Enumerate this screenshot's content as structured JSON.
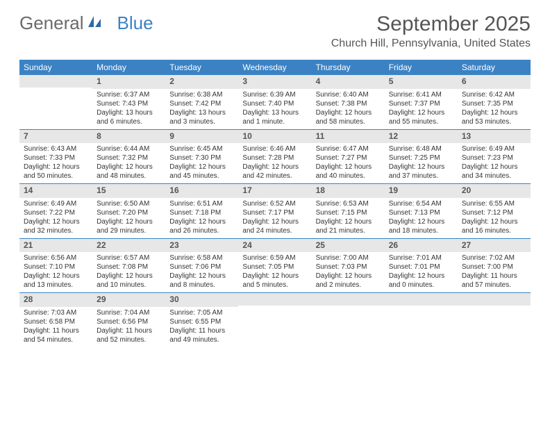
{
  "logo": {
    "text1": "General",
    "text2": "Blue"
  },
  "title": "September 2025",
  "location": "Church Hill, Pennsylvania, United States",
  "colors": {
    "header_bg": "#3b82c4",
    "daynum_bg": "#e7e7e7",
    "text": "#333333",
    "title_text": "#555555"
  },
  "dow": [
    "Sunday",
    "Monday",
    "Tuesday",
    "Wednesday",
    "Thursday",
    "Friday",
    "Saturday"
  ],
  "weeks": [
    [
      null,
      {
        "n": "1",
        "sr": "Sunrise: 6:37 AM",
        "ss": "Sunset: 7:43 PM",
        "dl": "Daylight: 13 hours and 6 minutes."
      },
      {
        "n": "2",
        "sr": "Sunrise: 6:38 AM",
        "ss": "Sunset: 7:42 PM",
        "dl": "Daylight: 13 hours and 3 minutes."
      },
      {
        "n": "3",
        "sr": "Sunrise: 6:39 AM",
        "ss": "Sunset: 7:40 PM",
        "dl": "Daylight: 13 hours and 1 minute."
      },
      {
        "n": "4",
        "sr": "Sunrise: 6:40 AM",
        "ss": "Sunset: 7:38 PM",
        "dl": "Daylight: 12 hours and 58 minutes."
      },
      {
        "n": "5",
        "sr": "Sunrise: 6:41 AM",
        "ss": "Sunset: 7:37 PM",
        "dl": "Daylight: 12 hours and 55 minutes."
      },
      {
        "n": "6",
        "sr": "Sunrise: 6:42 AM",
        "ss": "Sunset: 7:35 PM",
        "dl": "Daylight: 12 hours and 53 minutes."
      }
    ],
    [
      {
        "n": "7",
        "sr": "Sunrise: 6:43 AM",
        "ss": "Sunset: 7:33 PM",
        "dl": "Daylight: 12 hours and 50 minutes."
      },
      {
        "n": "8",
        "sr": "Sunrise: 6:44 AM",
        "ss": "Sunset: 7:32 PM",
        "dl": "Daylight: 12 hours and 48 minutes."
      },
      {
        "n": "9",
        "sr": "Sunrise: 6:45 AM",
        "ss": "Sunset: 7:30 PM",
        "dl": "Daylight: 12 hours and 45 minutes."
      },
      {
        "n": "10",
        "sr": "Sunrise: 6:46 AM",
        "ss": "Sunset: 7:28 PM",
        "dl": "Daylight: 12 hours and 42 minutes."
      },
      {
        "n": "11",
        "sr": "Sunrise: 6:47 AM",
        "ss": "Sunset: 7:27 PM",
        "dl": "Daylight: 12 hours and 40 minutes."
      },
      {
        "n": "12",
        "sr": "Sunrise: 6:48 AM",
        "ss": "Sunset: 7:25 PM",
        "dl": "Daylight: 12 hours and 37 minutes."
      },
      {
        "n": "13",
        "sr": "Sunrise: 6:49 AM",
        "ss": "Sunset: 7:23 PM",
        "dl": "Daylight: 12 hours and 34 minutes."
      }
    ],
    [
      {
        "n": "14",
        "sr": "Sunrise: 6:49 AM",
        "ss": "Sunset: 7:22 PM",
        "dl": "Daylight: 12 hours and 32 minutes."
      },
      {
        "n": "15",
        "sr": "Sunrise: 6:50 AM",
        "ss": "Sunset: 7:20 PM",
        "dl": "Daylight: 12 hours and 29 minutes."
      },
      {
        "n": "16",
        "sr": "Sunrise: 6:51 AM",
        "ss": "Sunset: 7:18 PM",
        "dl": "Daylight: 12 hours and 26 minutes."
      },
      {
        "n": "17",
        "sr": "Sunrise: 6:52 AM",
        "ss": "Sunset: 7:17 PM",
        "dl": "Daylight: 12 hours and 24 minutes."
      },
      {
        "n": "18",
        "sr": "Sunrise: 6:53 AM",
        "ss": "Sunset: 7:15 PM",
        "dl": "Daylight: 12 hours and 21 minutes."
      },
      {
        "n": "19",
        "sr": "Sunrise: 6:54 AM",
        "ss": "Sunset: 7:13 PM",
        "dl": "Daylight: 12 hours and 18 minutes."
      },
      {
        "n": "20",
        "sr": "Sunrise: 6:55 AM",
        "ss": "Sunset: 7:12 PM",
        "dl": "Daylight: 12 hours and 16 minutes."
      }
    ],
    [
      {
        "n": "21",
        "sr": "Sunrise: 6:56 AM",
        "ss": "Sunset: 7:10 PM",
        "dl": "Daylight: 12 hours and 13 minutes."
      },
      {
        "n": "22",
        "sr": "Sunrise: 6:57 AM",
        "ss": "Sunset: 7:08 PM",
        "dl": "Daylight: 12 hours and 10 minutes."
      },
      {
        "n": "23",
        "sr": "Sunrise: 6:58 AM",
        "ss": "Sunset: 7:06 PM",
        "dl": "Daylight: 12 hours and 8 minutes."
      },
      {
        "n": "24",
        "sr": "Sunrise: 6:59 AM",
        "ss": "Sunset: 7:05 PM",
        "dl": "Daylight: 12 hours and 5 minutes."
      },
      {
        "n": "25",
        "sr": "Sunrise: 7:00 AM",
        "ss": "Sunset: 7:03 PM",
        "dl": "Daylight: 12 hours and 2 minutes."
      },
      {
        "n": "26",
        "sr": "Sunrise: 7:01 AM",
        "ss": "Sunset: 7:01 PM",
        "dl": "Daylight: 12 hours and 0 minutes."
      },
      {
        "n": "27",
        "sr": "Sunrise: 7:02 AM",
        "ss": "Sunset: 7:00 PM",
        "dl": "Daylight: 11 hours and 57 minutes."
      }
    ],
    [
      {
        "n": "28",
        "sr": "Sunrise: 7:03 AM",
        "ss": "Sunset: 6:58 PM",
        "dl": "Daylight: 11 hours and 54 minutes."
      },
      {
        "n": "29",
        "sr": "Sunrise: 7:04 AM",
        "ss": "Sunset: 6:56 PM",
        "dl": "Daylight: 11 hours and 52 minutes."
      },
      {
        "n": "30",
        "sr": "Sunrise: 7:05 AM",
        "ss": "Sunset: 6:55 PM",
        "dl": "Daylight: 11 hours and 49 minutes."
      },
      null,
      null,
      null,
      null
    ]
  ]
}
